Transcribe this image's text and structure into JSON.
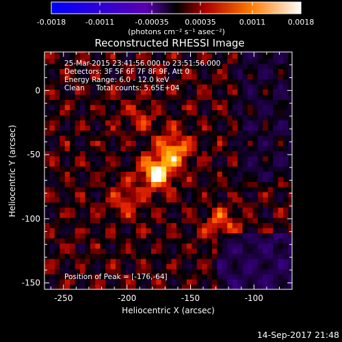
{
  "chart_data": {
    "type": "heatmap",
    "title": "Reconstructed RHESSI Image",
    "xlabel": "Heliocentric X (arcsec)",
    "ylabel": "Heliocentric Y (arcsec)",
    "xlim": [
      -265,
      -70
    ],
    "ylim": [
      -155,
      30
    ],
    "xticks": [
      -250,
      -200,
      -150,
      -100
    ],
    "yticks": [
      0,
      -50,
      -100,
      -150
    ],
    "colorbar": {
      "ticks": [
        "-0.0018",
        "-0.0011",
        "-0.00035",
        "0.00035",
        "0.0011",
        "0.0018"
      ],
      "units": "(photons cm⁻² s⁻¹ asec⁻²)",
      "range": [
        -0.0018,
        0.0018
      ]
    },
    "annotations": [
      "25-Mar-2015 23:41:56.000 to 23:51:56.000",
      "Detectors: 3F 5F 6F 7F 8F 9F, Att 0",
      "Energy Range: 6.0 - 12.0 keV",
      "Clean     Total counts: 5.65E+04"
    ],
    "peak_label": "Position of Peak = [-176,-64]",
    "peak": [
      -176,
      -64
    ],
    "sources": [
      {
        "x": -176,
        "y": -64,
        "intensity": 1.0
      },
      {
        "x": -163,
        "y": -45,
        "intensity": 0.75
      },
      {
        "x": -126,
        "y": -105,
        "intensity": 0.55
      },
      {
        "x": -200,
        "y": -85,
        "intensity": 0.45
      },
      {
        "x": -190,
        "y": -20,
        "intensity": 0.35
      }
    ],
    "footer_date": "14-Sep-2017 21:48"
  }
}
